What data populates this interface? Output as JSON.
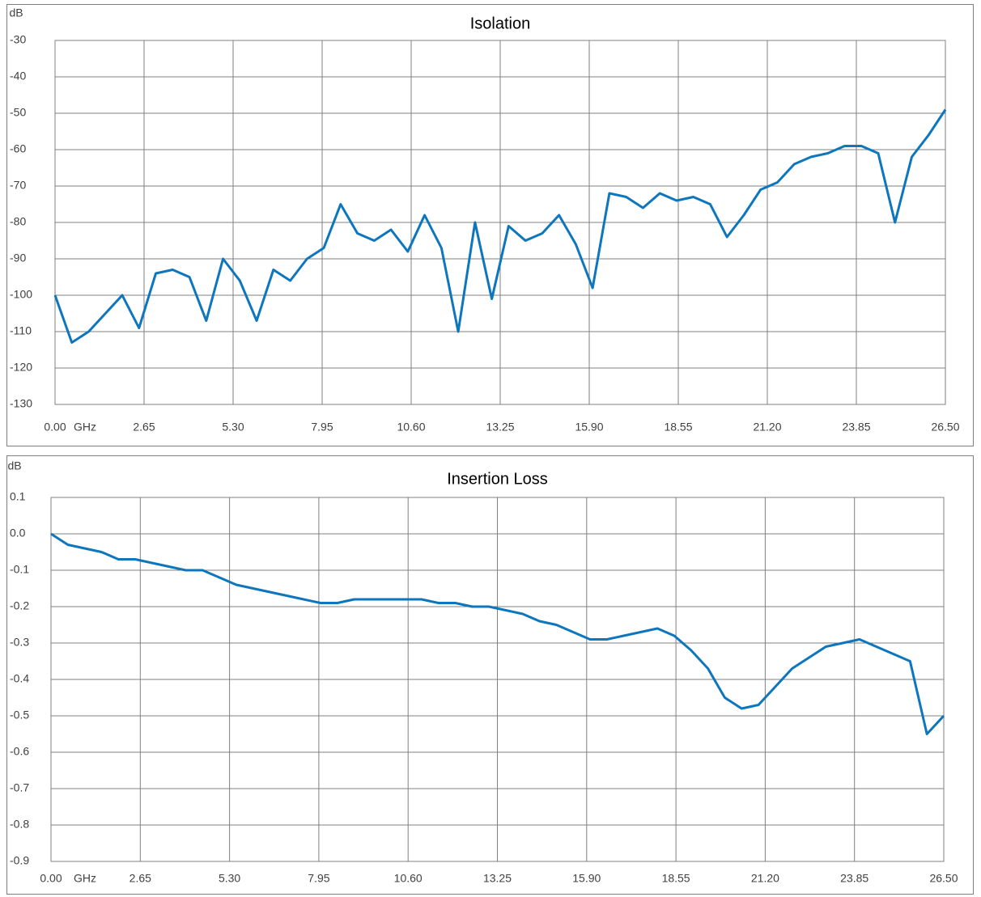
{
  "chart_data": [
    {
      "type": "line",
      "title": "Isolation",
      "y_unit": "dB",
      "x_unit": "GHz",
      "grid": true,
      "x": [
        0,
        0.5,
        1,
        1.5,
        2,
        2.5,
        3,
        3.5,
        4,
        4.5,
        5,
        5.5,
        6,
        6.5,
        7,
        7.5,
        8,
        8.5,
        9,
        9.5,
        10,
        10.5,
        11,
        11.5,
        12,
        12.5,
        13,
        13.5,
        14,
        14.5,
        15,
        15.5,
        16,
        16.5,
        17,
        17.5,
        18,
        18.5,
        19,
        19.5,
        20,
        20.5,
        21,
        21.5,
        22,
        22.5,
        23,
        23.5,
        24,
        24.5,
        25,
        25.5,
        26,
        26.5
      ],
      "series": [
        {
          "name": "Isolation",
          "color": "#0e76bd",
          "values": [
            -100,
            -113,
            -110,
            -105,
            -100,
            -109,
            -94,
            -93,
            -95,
            -107,
            -90,
            -96,
            -107,
            -93,
            -96,
            -90,
            -87,
            -75,
            -83,
            -85,
            -82,
            -88,
            -78,
            -87,
            -110,
            -80,
            -101,
            -81,
            -85,
            -83,
            -78,
            -86,
            -98,
            -72,
            -73,
            -76,
            -72,
            -74,
            -73,
            -75,
            -84,
            -78,
            -71,
            -69,
            -64,
            -62,
            -61,
            -59,
            -59,
            -61,
            -80,
            -62,
            -56,
            -49
          ]
        }
      ],
      "xlim": [
        0,
        26.5
      ],
      "xticks": [
        {
          "value": 0,
          "label": "0.00"
        },
        2.65,
        {
          "value": 5.3,
          "label": "5.30"
        },
        7.95,
        {
          "value": 10.6,
          "label": "10.60"
        },
        13.25,
        {
          "value": 15.9,
          "label": "15.90"
        },
        18.55,
        {
          "value": 21.2,
          "label": "21.20"
        },
        23.85,
        {
          "value": 26.5,
          "label": "26.50"
        }
      ],
      "ylim": [
        -130,
        -30
      ],
      "yticks": [
        -30,
        -40,
        -50,
        -60,
        -70,
        -80,
        -90,
        -100,
        -110,
        -120,
        -130
      ]
    },
    {
      "type": "line",
      "title": "Insertion Loss",
      "y_unit": "dB",
      "x_unit": "GHz",
      "grid": true,
      "x": [
        0,
        0.5,
        1,
        1.5,
        2,
        2.5,
        3,
        3.5,
        4,
        4.5,
        5,
        5.5,
        6,
        6.5,
        7,
        7.5,
        8,
        8.5,
        9,
        9.5,
        10,
        10.5,
        11,
        11.5,
        12,
        12.5,
        13,
        13.5,
        14,
        14.5,
        15,
        15.5,
        16,
        16.5,
        17,
        17.5,
        18,
        18.5,
        19,
        19.5,
        20,
        20.5,
        21,
        21.5,
        22,
        22.5,
        23,
        23.5,
        24,
        24.5,
        25,
        25.5,
        26,
        26.5
      ],
      "series": [
        {
          "name": "Insertion Loss",
          "color": "#0e76bd",
          "values": [
            0,
            -0.03,
            -0.04,
            -0.05,
            -0.07,
            -0.07,
            -0.08,
            -0.09,
            -0.1,
            -0.1,
            -0.12,
            -0.14,
            -0.15,
            -0.16,
            -0.17,
            -0.18,
            -0.19,
            -0.19,
            -0.18,
            -0.18,
            -0.18,
            -0.18,
            -0.18,
            -0.19,
            -0.19,
            -0.2,
            -0.2,
            -0.21,
            -0.22,
            -0.24,
            -0.25,
            -0.27,
            -0.29,
            -0.29,
            -0.28,
            -0.27,
            -0.26,
            -0.28,
            -0.32,
            -0.37,
            -0.45,
            -0.48,
            -0.47,
            -0.42,
            -0.37,
            -0.34,
            -0.31,
            -0.3,
            -0.29,
            -0.31,
            -0.33,
            -0.35,
            -0.55,
            -0.5
          ]
        }
      ],
      "xlim": [
        0,
        26.5
      ],
      "xticks": [
        {
          "value": 0,
          "label": "0.00"
        },
        2.65,
        {
          "value": 5.3,
          "label": "5.30"
        },
        7.95,
        {
          "value": 10.6,
          "label": "10.60"
        },
        13.25,
        {
          "value": 15.9,
          "label": "15.90"
        },
        18.55,
        {
          "value": 21.2,
          "label": "21.20"
        },
        23.85,
        {
          "value": 26.5,
          "label": "26.50"
        }
      ],
      "ylim": [
        -0.9,
        0.1
      ],
      "yticks": [
        0.1,
        {
          "value": 0,
          "label": "0.0"
        },
        -0.1,
        -0.2,
        -0.3,
        -0.4,
        -0.5,
        -0.6,
        -0.7,
        -0.8,
        -0.9
      ]
    }
  ]
}
